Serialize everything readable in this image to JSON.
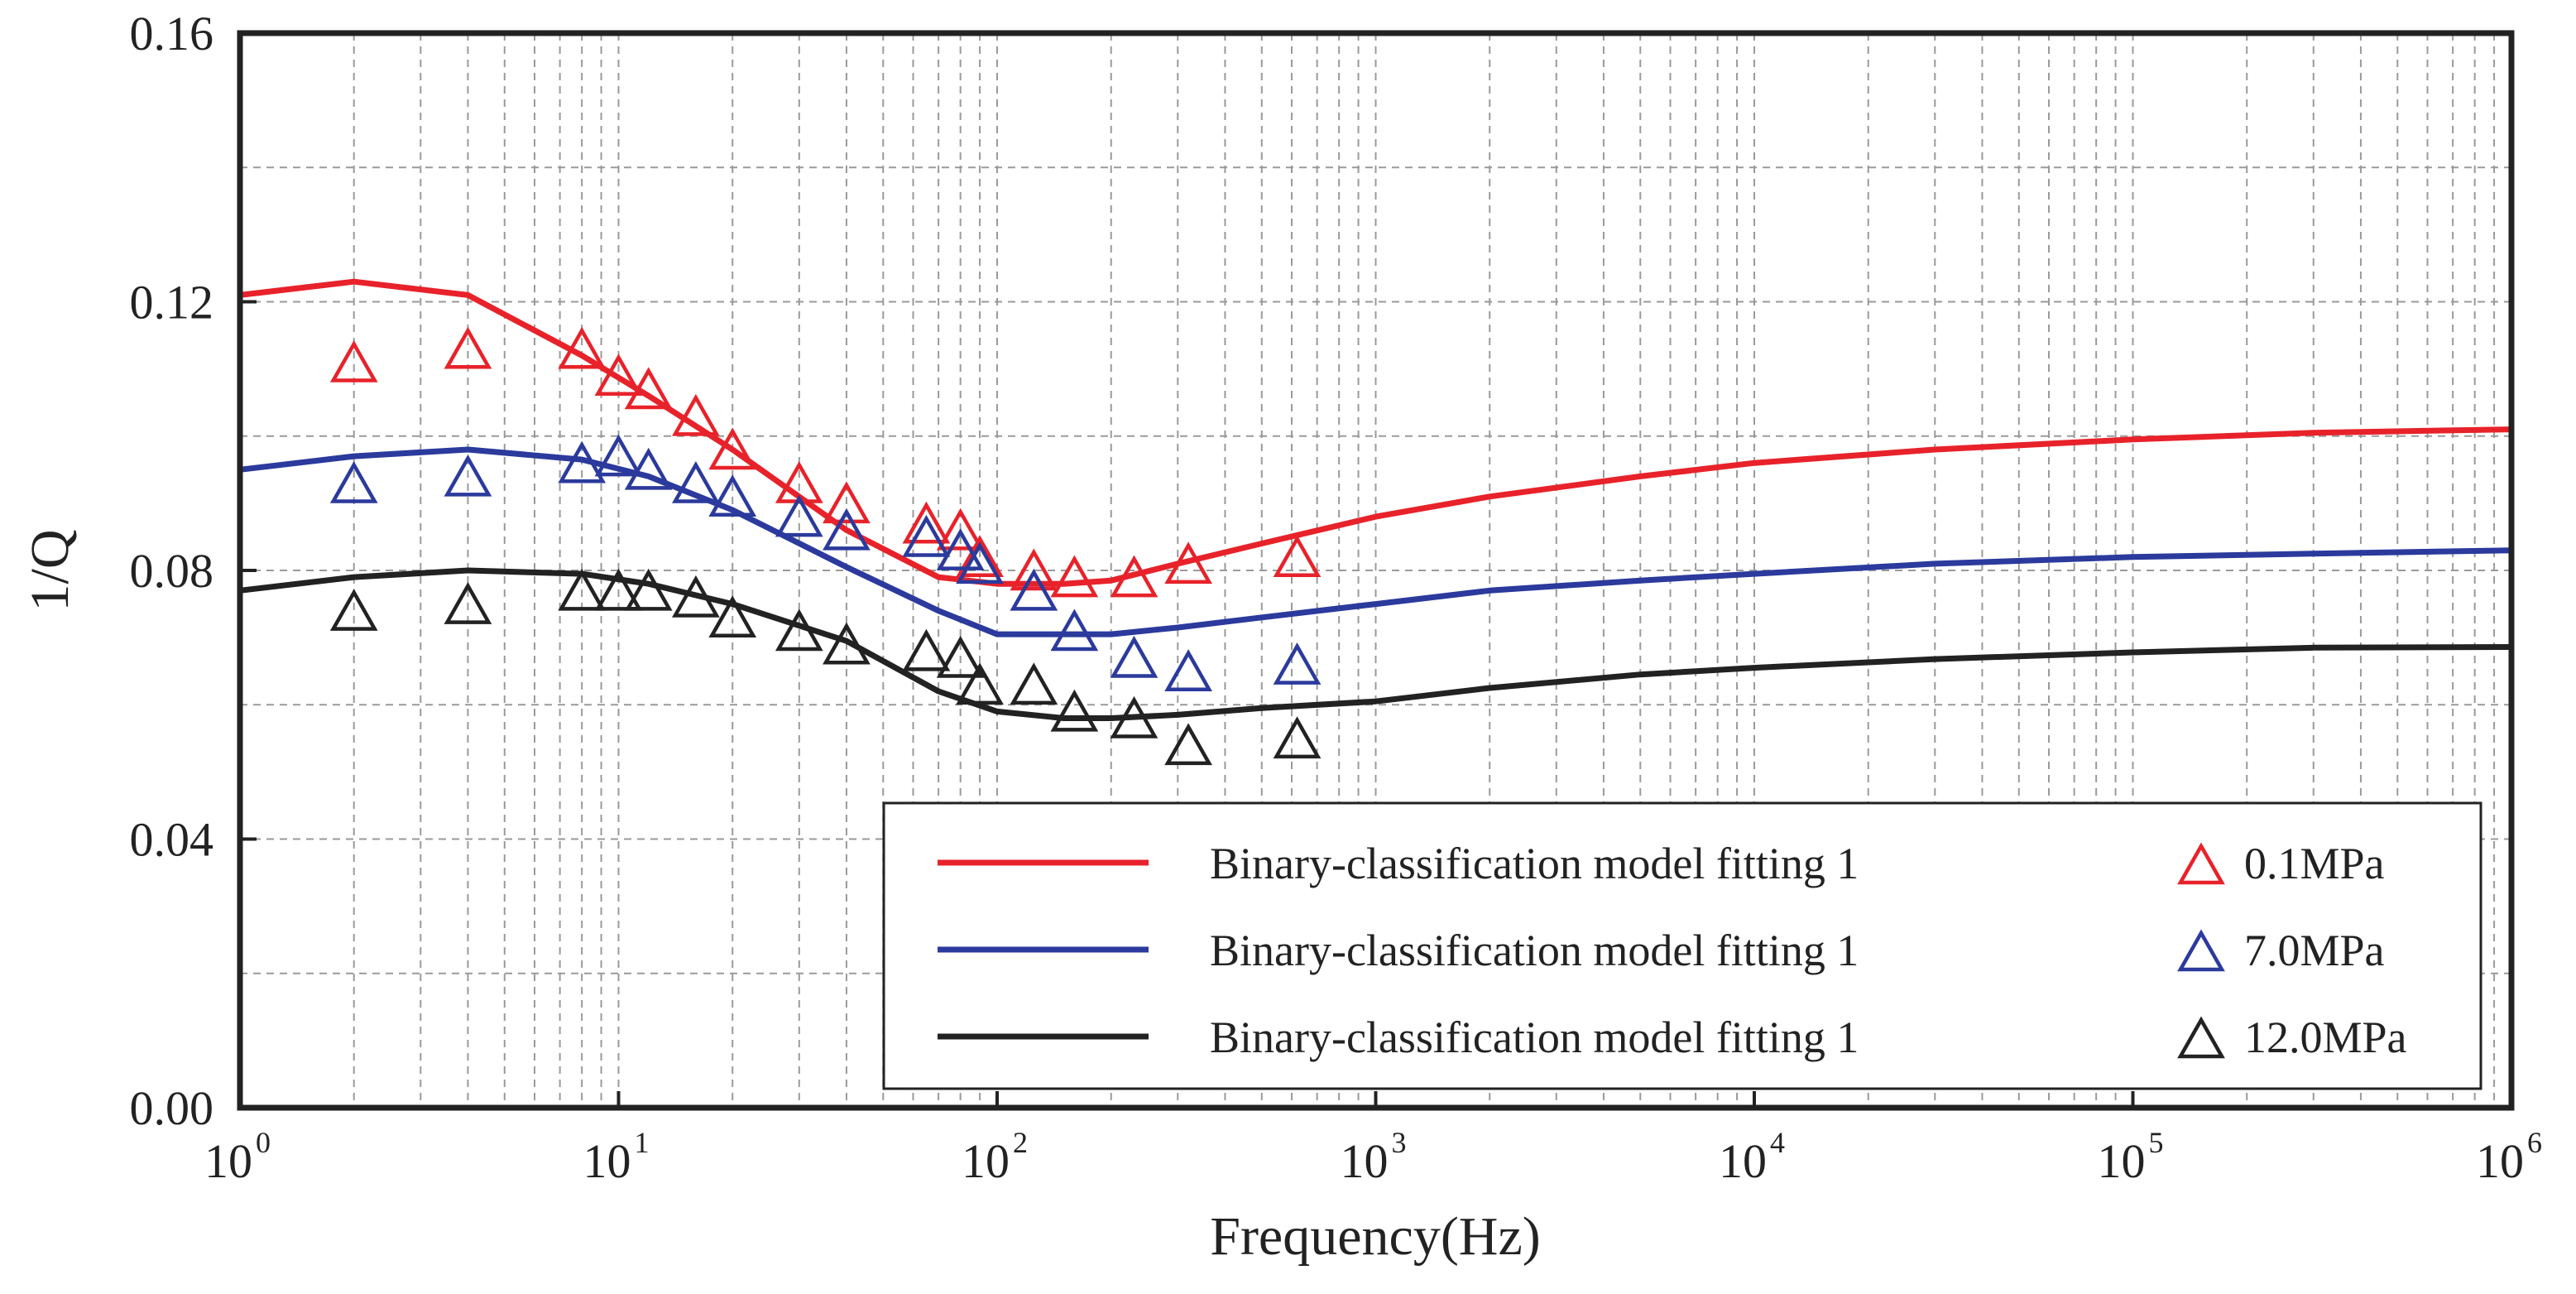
{
  "chart_data": {
    "type": "line",
    "xscale": "log",
    "xlabel": "Frequency(Hz)",
    "ylabel": "1/Q",
    "xlim": [
      1,
      1000000
    ],
    "ylim": [
      0,
      0.16
    ],
    "grid": true,
    "legend_position": "bottom-right",
    "x_tick_labels": [
      {
        "base": "10",
        "exp": "0",
        "value": 1
      },
      {
        "base": "10",
        "exp": "1",
        "value": 10
      },
      {
        "base": "10",
        "exp": "2",
        "value": 100
      },
      {
        "base": "10",
        "exp": "3",
        "value": 1000
      },
      {
        "base": "10",
        "exp": "4",
        "value": 10000
      },
      {
        "base": "10",
        "exp": "5",
        "value": 100000
      },
      {
        "base": "10",
        "exp": "6",
        "value": 1000000
      }
    ],
    "y_tick_labels": [
      {
        "label": "0.00",
        "value": 0
      },
      {
        "label": "0.04",
        "value": 0.04
      },
      {
        "label": "0.08",
        "value": 0.08
      },
      {
        "label": "0.12",
        "value": 0.12
      },
      {
        "label": "0.16",
        "value": 0.16
      }
    ],
    "line_series": [
      {
        "name": "Binary-classification model fitting 1",
        "color": "#e8222a",
        "x": [
          1,
          2,
          4,
          8,
          12,
          20,
          40,
          70,
          100,
          150,
          200,
          300,
          500,
          1000,
          2000,
          5000,
          10000,
          30000,
          100000,
          300000,
          1000000
        ],
        "y": [
          0.121,
          0.123,
          0.121,
          0.112,
          0.106,
          0.098,
          0.086,
          0.079,
          0.078,
          0.078,
          0.0785,
          0.081,
          0.084,
          0.088,
          0.091,
          0.094,
          0.096,
          0.098,
          0.0995,
          0.1005,
          0.101
        ]
      },
      {
        "name": "Binary-classification model fitting 1",
        "color": "#2b3a9c",
        "x": [
          1,
          2,
          4,
          8,
          12,
          20,
          40,
          70,
          100,
          150,
          200,
          300,
          500,
          1000,
          2000,
          5000,
          10000,
          30000,
          100000,
          300000,
          1000000
        ],
        "y": [
          0.095,
          0.097,
          0.098,
          0.0965,
          0.094,
          0.089,
          0.0805,
          0.074,
          0.0705,
          0.0705,
          0.0705,
          0.0715,
          0.073,
          0.075,
          0.077,
          0.0785,
          0.0795,
          0.081,
          0.082,
          0.0825,
          0.083
        ]
      },
      {
        "name": "Binary-classification model fitting 1",
        "color": "#222222",
        "x": [
          1,
          2,
          4,
          8,
          12,
          20,
          40,
          70,
          100,
          150,
          200,
          300,
          500,
          1000,
          2000,
          5000,
          10000,
          30000,
          100000,
          300000,
          1000000
        ],
        "y": [
          0.077,
          0.079,
          0.08,
          0.0795,
          0.078,
          0.075,
          0.0695,
          0.062,
          0.059,
          0.058,
          0.058,
          0.0585,
          0.0595,
          0.0605,
          0.0625,
          0.0645,
          0.0655,
          0.0668,
          0.0678,
          0.0685,
          0.0686
        ]
      }
    ],
    "scatter_series": [
      {
        "name": "0.1MPa",
        "color": "#e8222a",
        "x": [
          2,
          4,
          8,
          10,
          12,
          16,
          20,
          30,
          40,
          65,
          80,
          90,
          125,
          160,
          230,
          320,
          620
        ],
        "y": [
          0.111,
          0.113,
          0.113,
          0.109,
          0.107,
          0.103,
          0.098,
          0.093,
          0.09,
          0.087,
          0.086,
          0.082,
          0.08,
          0.079,
          0.079,
          0.081,
          0.082
        ]
      },
      {
        "name": "7.0MPa",
        "color": "#2b3a9c",
        "x": [
          2,
          4,
          8,
          10,
          12,
          16,
          20,
          30,
          40,
          65,
          80,
          90,
          125,
          160,
          230,
          320,
          620
        ],
        "y": [
          0.093,
          0.094,
          0.096,
          0.097,
          0.095,
          0.093,
          0.091,
          0.088,
          0.086,
          0.085,
          0.083,
          0.081,
          0.077,
          0.071,
          0.067,
          0.065,
          0.066
        ]
      },
      {
        "name": "12.0MPa",
        "color": "#222222",
        "x": [
          2,
          4,
          8,
          10,
          12,
          16,
          20,
          30,
          40,
          65,
          80,
          90,
          125,
          160,
          230,
          320,
          620
        ],
        "y": [
          0.074,
          0.075,
          0.077,
          0.077,
          0.077,
          0.076,
          0.073,
          0.071,
          0.069,
          0.068,
          0.067,
          0.063,
          0.063,
          0.059,
          0.058,
          0.054,
          0.055
        ]
      }
    ],
    "legend": [
      {
        "line_label": "Binary-classification model fitting 1",
        "marker_label": "0.1MPa",
        "color": "#e8222a"
      },
      {
        "line_label": "Binary-classification model fitting 1",
        "marker_label": "7.0MPa",
        "color": "#2b3a9c"
      },
      {
        "line_label": "Binary-classification model fitting 1",
        "marker_label": "12.0MPa",
        "color": "#222222"
      }
    ]
  }
}
